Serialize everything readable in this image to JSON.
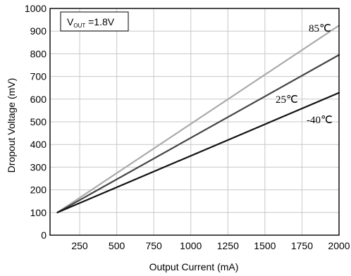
{
  "chart_data": {
    "type": "line",
    "xlabel": "Output Current (mA)",
    "ylabel": "Dropout Voltage (mV)",
    "xlim": [
      50,
      2000
    ],
    "ylim": [
      0,
      1000
    ],
    "x_ticks": [
      250,
      500,
      750,
      1000,
      1250,
      1500,
      1750,
      2000
    ],
    "y_ticks": [
      0,
      100,
      200,
      300,
      400,
      500,
      600,
      700,
      800,
      900,
      1000
    ],
    "grid": true,
    "annotation": {
      "prefix": "V",
      "subscript": "OUT",
      "suffix": " =1.8V",
      "placement": "top-left"
    },
    "series": [
      {
        "name": "85℃",
        "color": "#aaaaaa",
        "x": [
          100,
          2000
        ],
        "y": [
          100,
          925
        ]
      },
      {
        "name": "25℃",
        "color": "#444444",
        "x": [
          100,
          2000
        ],
        "y": [
          100,
          795
        ]
      },
      {
        "name": "-40℃",
        "color": "#111111",
        "x": [
          100,
          2000
        ],
        "y": [
          100,
          628
        ]
      }
    ]
  }
}
